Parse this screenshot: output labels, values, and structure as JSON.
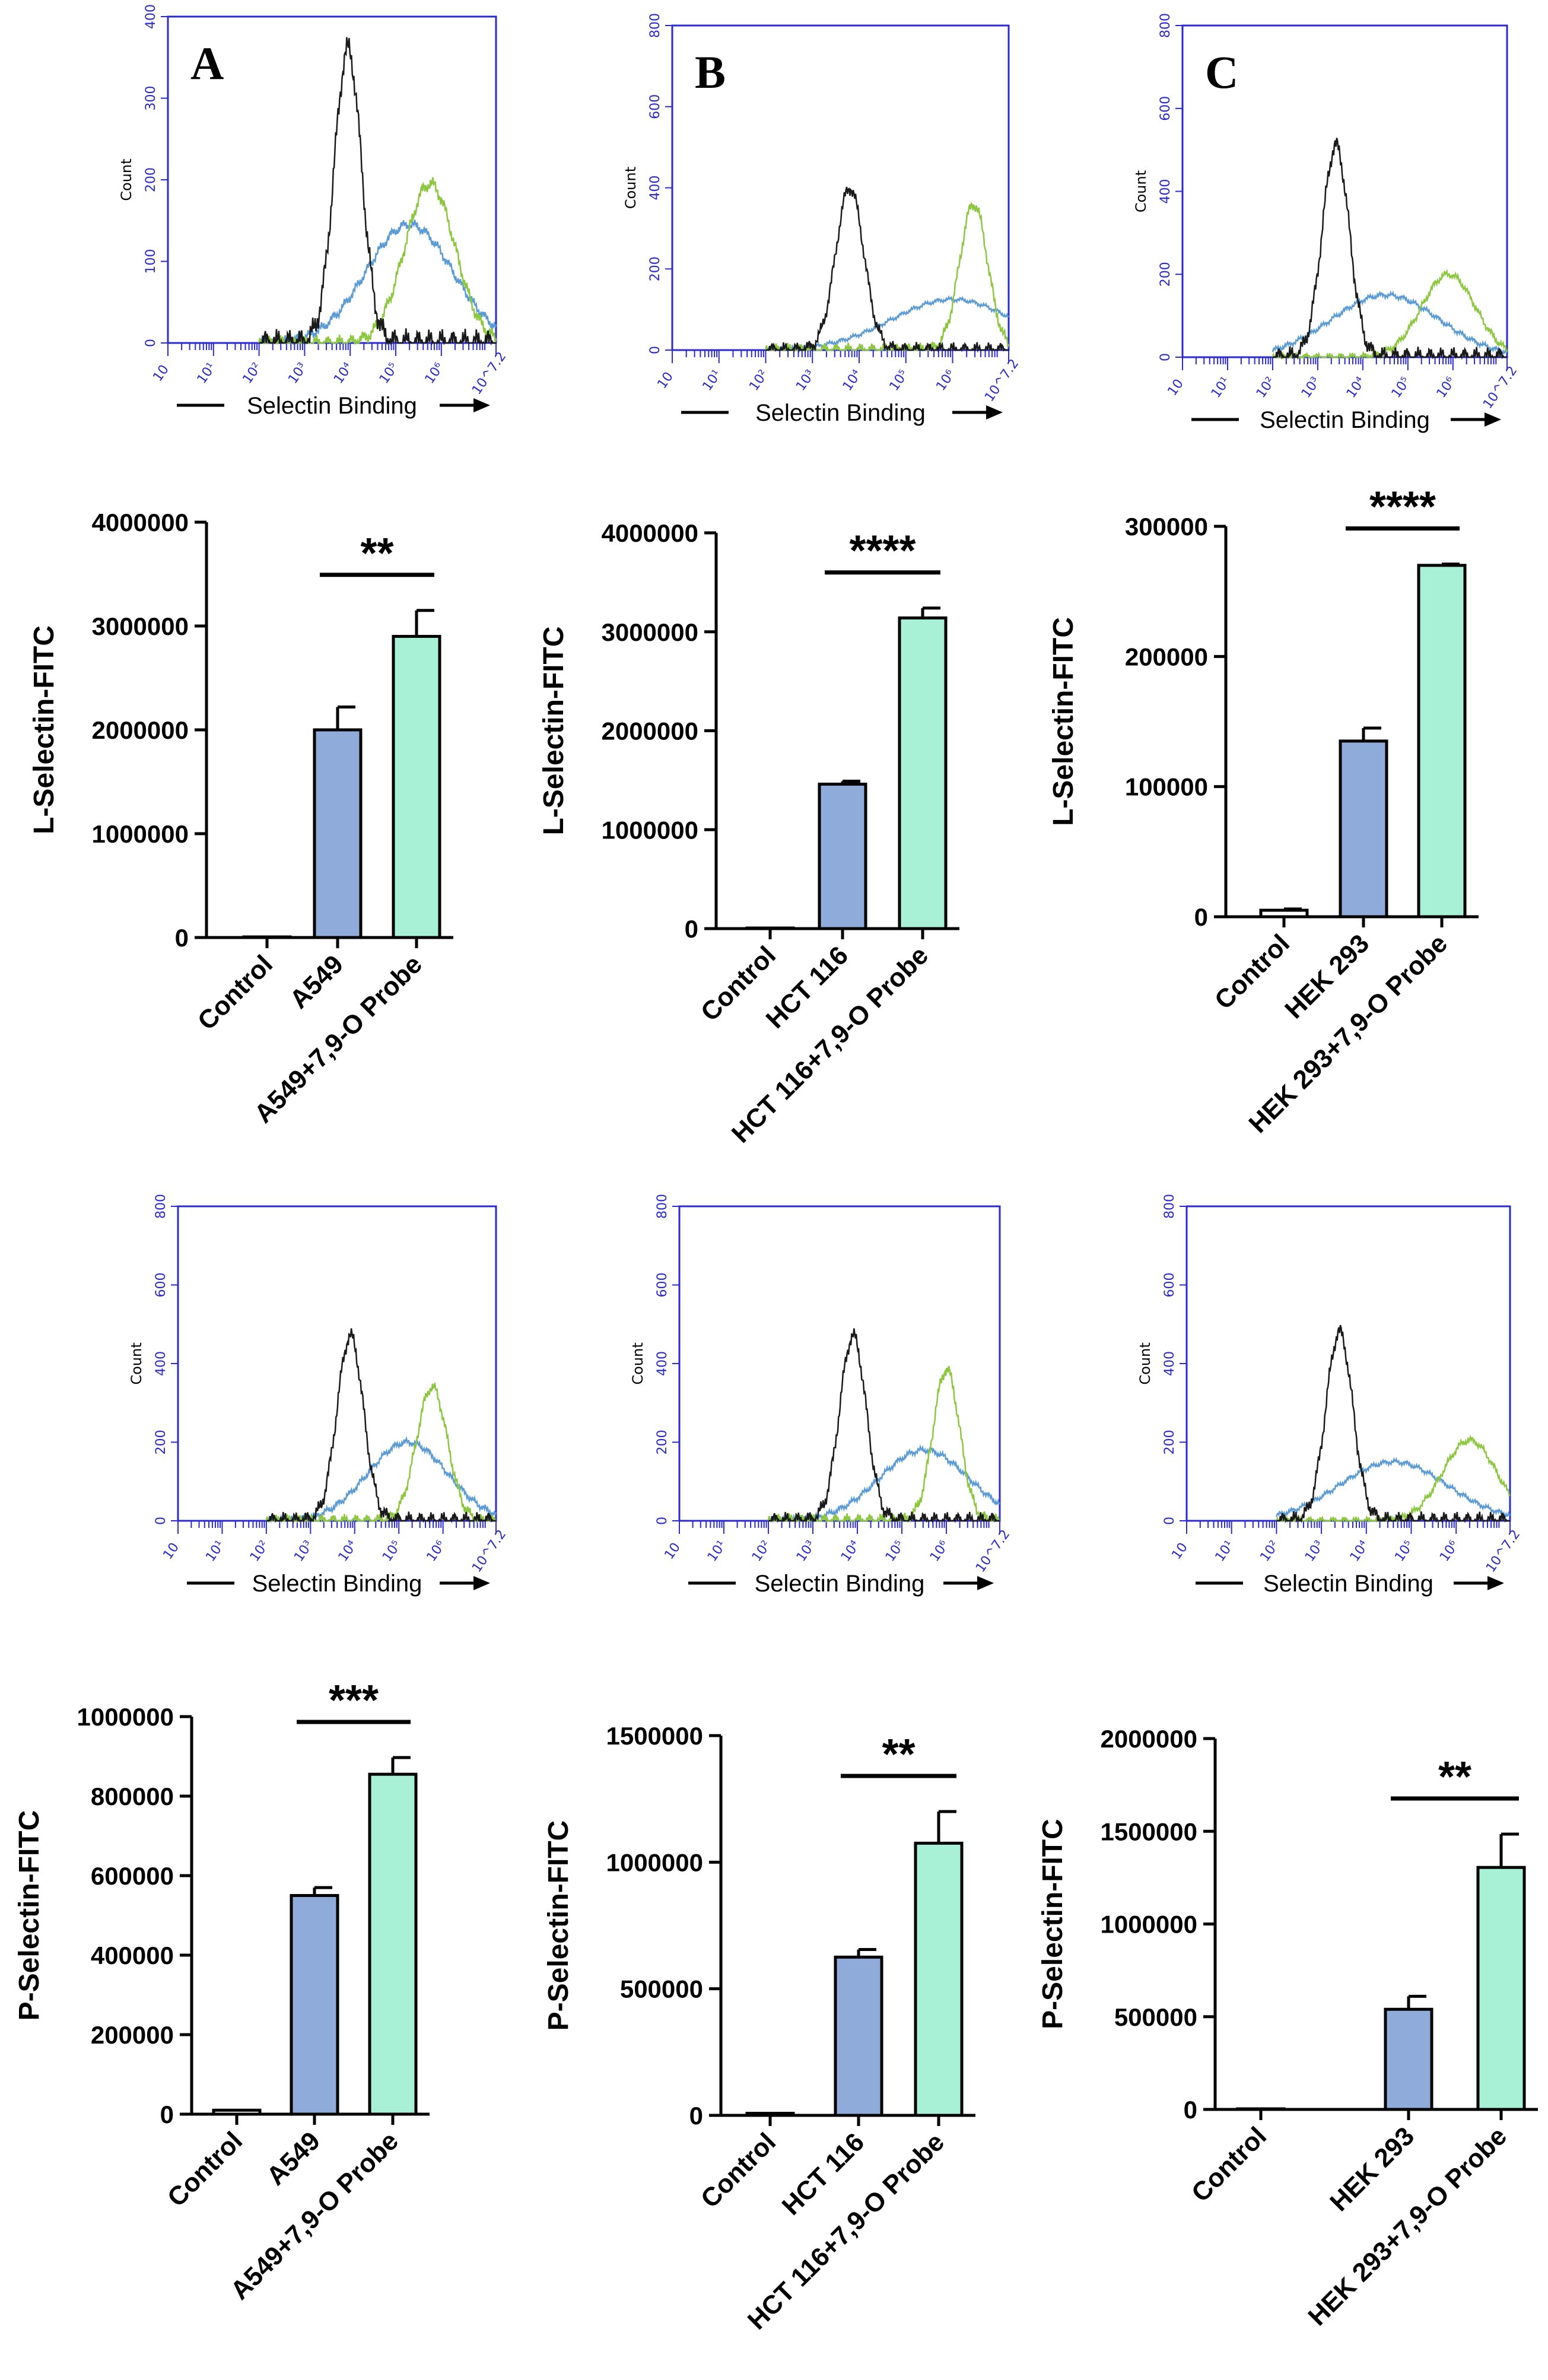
{
  "figure": {
    "colors": {
      "hist_axis": "#2a2ad0",
      "control_curve": "#1a1a1a",
      "sample_curve": "#5b9bd5",
      "probe_curve": "#8dc63f",
      "bar_sample": "#8fabd9",
      "bar_probe": "#a8f0d6"
    },
    "histograms": [
      {
        "panel": "A",
        "ylabel": "Count",
        "xlabel": "Selectin Binding",
        "yticks": [
          "0",
          "100",
          "200",
          "300",
          "400"
        ],
        "ymax": 400,
        "xticks": [
          "10",
          "10¹",
          "10²",
          "10³",
          "10⁴",
          "10⁵",
          "10⁶",
          "10^7.2"
        ],
        "peaks": {
          "control": [
            3.95,
            360,
            0.3
          ],
          "sample": [
            5.3,
            145,
            0.95
          ],
          "probe": [
            5.75,
            195,
            0.55
          ]
        }
      },
      {
        "panel": "B",
        "ylabel": "Count",
        "xlabel": "Selectin Binding",
        "yticks": [
          "0",
          "200",
          "400",
          "600",
          "800"
        ],
        "ymax": 800,
        "xticks": [
          "10",
          "10¹",
          "10²",
          "10³",
          "10⁴",
          "10⁵",
          "10⁶",
          "10^7.2"
        ],
        "peaks": {
          "control": [
            3.8,
            400,
            0.3
          ],
          "sample": [
            6.0,
            125,
            1.3
          ],
          "probe": [
            6.45,
            360,
            0.3
          ]
        }
      },
      {
        "panel": "C",
        "ylabel": "Count",
        "xlabel": "Selectin Binding",
        "yticks": [
          "0",
          "200",
          "400",
          "600",
          "800"
        ],
        "ymax": 800,
        "xticks": [
          "10",
          "10¹",
          "10²",
          "10³",
          "10⁴",
          "10⁵",
          "10⁶",
          "10^7.2"
        ],
        "peaks": {
          "control": [
            3.4,
            510,
            0.3
          ],
          "sample": [
            4.5,
            150,
            1.2
          ],
          "probe": [
            5.9,
            200,
            0.6
          ]
        }
      },
      {
        "panel": "",
        "ylabel": "Count",
        "xlabel": "Selectin Binding",
        "yticks": [
          "0",
          "200",
          "400",
          "600",
          "800"
        ],
        "ymax": 800,
        "xticks": [
          "10",
          "10¹",
          "10²",
          "10³",
          "10⁴",
          "10⁵",
          "10⁶",
          "10^7.2"
        ],
        "peaks": {
          "control": [
            3.9,
            470,
            0.3
          ],
          "sample": [
            5.2,
            200,
            0.9
          ],
          "probe": [
            5.75,
            340,
            0.35
          ]
        }
      },
      {
        "panel": "",
        "ylabel": "Count",
        "xlabel": "Selectin Binding",
        "yticks": [
          "0",
          "200",
          "400",
          "600",
          "800"
        ],
        "ymax": 800,
        "xticks": [
          "10",
          "10¹",
          "10²",
          "10³",
          "10⁴",
          "10⁵",
          "10⁶",
          "10^7.2"
        ],
        "peaks": {
          "control": [
            3.9,
            470,
            0.3
          ],
          "sample": [
            5.5,
            180,
            1.0
          ],
          "probe": [
            6.0,
            385,
            0.3
          ]
        }
      },
      {
        "panel": "",
        "ylabel": "Count",
        "xlabel": "Selectin Binding",
        "yticks": [
          "0",
          "200",
          "400",
          "600",
          "800"
        ],
        "ymax": 800,
        "xticks": [
          "10",
          "10¹",
          "10²",
          "10³",
          "10⁴",
          "10⁵",
          "10⁶",
          "10^7.2"
        ],
        "peaks": {
          "control": [
            3.4,
            480,
            0.3
          ],
          "sample": [
            4.6,
            150,
            1.2
          ],
          "probe": [
            6.3,
            205,
            0.6
          ]
        }
      }
    ]
  },
  "chart_data": [
    {
      "type": "bar",
      "ylabel": "L-Selectin-FITC",
      "categories": [
        "Control",
        "A549",
        "A549+7,9-O Probe"
      ],
      "values": [
        0,
        2000000,
        2900000
      ],
      "errors": [
        0,
        220000,
        250000
      ],
      "ylim": [
        0,
        4000000
      ],
      "yticks": [
        "0",
        "1000000",
        "2000000",
        "3000000",
        "4000000"
      ],
      "significance": "**"
    },
    {
      "type": "bar",
      "ylabel": "L-Selectin-FITC",
      "categories": [
        "Control",
        "HCT 116",
        "HCT 116+7,9-O Probe"
      ],
      "values": [
        0,
        1460000,
        3140000
      ],
      "errors": [
        0,
        30000,
        100000
      ],
      "ylim": [
        0,
        4000000
      ],
      "yticks": [
        "0",
        "1000000",
        "2000000",
        "3000000",
        "4000000"
      ],
      "significance": "****"
    },
    {
      "type": "bar",
      "ylabel": "L-Selectin-FITC",
      "categories": [
        "Control",
        "HEK 293",
        "HEK 293+7,9-O Probe"
      ],
      "values": [
        5000,
        135000,
        270000
      ],
      "errors": [
        1000,
        10000,
        1000
      ],
      "ylim": [
        0,
        300000
      ],
      "yticks": [
        "0",
        "100000",
        "200000",
        "300000"
      ],
      "significance": "****"
    },
    {
      "type": "bar",
      "ylabel": "P-Selectin-FITC",
      "categories": [
        "Control",
        "A549",
        "A549+7,9-O Probe"
      ],
      "values": [
        10000,
        550000,
        855000
      ],
      "errors": [
        0,
        20000,
        42000
      ],
      "ylim": [
        0,
        1000000
      ],
      "yticks": [
        "0",
        "200000",
        "400000",
        "600000",
        "800000",
        "1000000"
      ],
      "significance": "***"
    },
    {
      "type": "bar",
      "ylabel": "P-Selectin-FITC",
      "categories": [
        "Control",
        "HCT 116",
        "HCT 116+7,9-O Probe"
      ],
      "values": [
        8000,
        625000,
        1075000
      ],
      "errors": [
        0,
        30000,
        125000
      ],
      "ylim": [
        0,
        1500000
      ],
      "yticks": [
        "0",
        "500000",
        "1000000",
        "1500000"
      ],
      "significance": "**"
    },
    {
      "type": "bar",
      "ylabel": "P-Selectin-FITC",
      "categories": [
        "Control",
        "HEK 293",
        "HEK 293+7,9-O Probe"
      ],
      "values": [
        0,
        540000,
        1305000
      ],
      "errors": [
        0,
        70000,
        180000
      ],
      "ylim": [
        0,
        2000000
      ],
      "yticks": [
        "0",
        "500000",
        "1000000",
        "1500000",
        "2000000"
      ],
      "significance": "**"
    }
  ]
}
